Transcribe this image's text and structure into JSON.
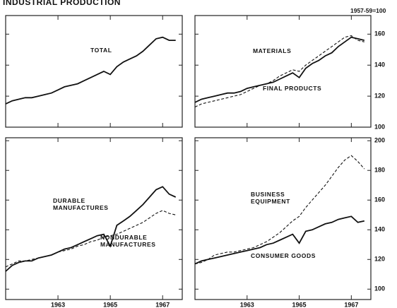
{
  "title": "INDUSTRIAL PRODUCTION",
  "units": "1957-59=100",
  "chart_data": [
    {
      "type": "line",
      "xlim": [
        1961,
        1967.75
      ],
      "ylim": [
        100,
        172
      ],
      "x": [
        1961,
        1961.25,
        1961.5,
        1961.75,
        1962,
        1962.25,
        1962.5,
        1962.75,
        1963,
        1963.25,
        1963.5,
        1963.75,
        1964,
        1964.25,
        1964.5,
        1964.75,
        1965,
        1965.25,
        1965.5,
        1965.75,
        1966,
        1966.25,
        1966.5,
        1966.75,
        1967,
        1967.25,
        1967.5
      ],
      "series": [
        {
          "name": "TOTAL",
          "color": "#111111",
          "style": "solid",
          "values": [
            115,
            117,
            118,
            119,
            119,
            120,
            121,
            122,
            124,
            126,
            127,
            128,
            130,
            132,
            134,
            136,
            134,
            139,
            142,
            144,
            146,
            149,
            153,
            157,
            158,
            156,
            156
          ]
        }
      ]
    },
    {
      "type": "line",
      "xlim": [
        1961,
        1967.75
      ],
      "ylim": [
        100,
        172
      ],
      "yticks": [
        100,
        120,
        140,
        160
      ],
      "x": [
        1961,
        1961.25,
        1961.5,
        1961.75,
        1962,
        1962.25,
        1962.5,
        1962.75,
        1963,
        1963.25,
        1963.5,
        1963.75,
        1964,
        1964.25,
        1964.5,
        1964.75,
        1965,
        1965.25,
        1965.5,
        1965.75,
        1966,
        1966.25,
        1966.5,
        1966.75,
        1967,
        1967.25,
        1967.5
      ],
      "series": [
        {
          "name": "MATERIALS",
          "color": "#111111",
          "style": "dashed",
          "values": [
            113,
            115,
            116,
            117,
            118,
            119,
            120,
            121,
            123,
            125,
            127,
            128,
            130,
            133,
            135,
            137,
            136,
            140,
            143,
            146,
            149,
            152,
            155,
            158,
            159,
            156,
            155
          ]
        },
        {
          "name": "FINAL PRODUCTS",
          "color": "#111111",
          "style": "solid",
          "values": [
            116,
            118,
            119,
            120,
            121,
            122,
            122,
            123,
            125,
            126,
            127,
            128,
            129,
            131,
            133,
            135,
            132,
            138,
            141,
            143,
            146,
            148,
            152,
            155,
            158,
            157,
            156
          ]
        }
      ]
    },
    {
      "type": "line",
      "xlim": [
        1961,
        1967.75
      ],
      "ylim": [
        93,
        202
      ],
      "xticks": [
        1963,
        1965,
        1967
      ],
      "x": [
        1961,
        1961.25,
        1961.5,
        1961.75,
        1962,
        1962.25,
        1962.5,
        1962.75,
        1963,
        1963.25,
        1963.5,
        1963.75,
        1964,
        1964.25,
        1964.5,
        1964.75,
        1965,
        1965.25,
        1965.5,
        1965.75,
        1966,
        1966.25,
        1966.5,
        1966.75,
        1967,
        1967.25,
        1967.5
      ],
      "series": [
        {
          "name": "DURABLE MANUFACTURES",
          "color": "#111111",
          "style": "solid",
          "values": [
            112,
            116,
            118,
            119,
            119,
            121,
            122,
            123,
            125,
            127,
            128,
            130,
            132,
            134,
            136,
            137,
            129,
            143,
            146,
            149,
            153,
            157,
            162,
            167,
            169,
            164,
            162
          ]
        },
        {
          "name": "NONDURABLE MANUFACTURES",
          "color": "#111111",
          "style": "dashed",
          "values": [
            115,
            117,
            119,
            119,
            120,
            121,
            122,
            123,
            125,
            126,
            127,
            129,
            130,
            132,
            133,
            135,
            136,
            137,
            139,
            141,
            143,
            145,
            148,
            151,
            153,
            151,
            150
          ]
        }
      ]
    },
    {
      "type": "line",
      "xlim": [
        1961,
        1967.75
      ],
      "ylim": [
        93,
        202
      ],
      "yticks": [
        100,
        120,
        140,
        160,
        180,
        200
      ],
      "xticks": [
        1963,
        1965,
        1967
      ],
      "x": [
        1961,
        1961.25,
        1961.5,
        1961.75,
        1962,
        1962.25,
        1962.5,
        1962.75,
        1963,
        1963.25,
        1963.5,
        1963.75,
        1964,
        1964.25,
        1964.5,
        1964.75,
        1965,
        1965.25,
        1965.5,
        1965.75,
        1966,
        1966.25,
        1966.5,
        1966.75,
        1967,
        1967.25,
        1967.5
      ],
      "series": [
        {
          "name": "BUSINESS EQUIPMENT",
          "color": "#111111",
          "style": "dashed",
          "values": [
            117,
            118,
            120,
            123,
            124,
            125,
            125,
            126,
            127,
            128,
            130,
            132,
            135,
            138,
            142,
            146,
            149,
            155,
            160,
            165,
            170,
            176,
            182,
            187,
            190,
            186,
            181
          ]
        },
        {
          "name": "CONSUMER GOODS",
          "color": "#111111",
          "style": "solid",
          "values": [
            117,
            119,
            120,
            121,
            122,
            123,
            124,
            125,
            126,
            127,
            128,
            130,
            131,
            133,
            135,
            137,
            131,
            139,
            140,
            142,
            144,
            145,
            147,
            148,
            149,
            145,
            146
          ]
        }
      ]
    }
  ]
}
